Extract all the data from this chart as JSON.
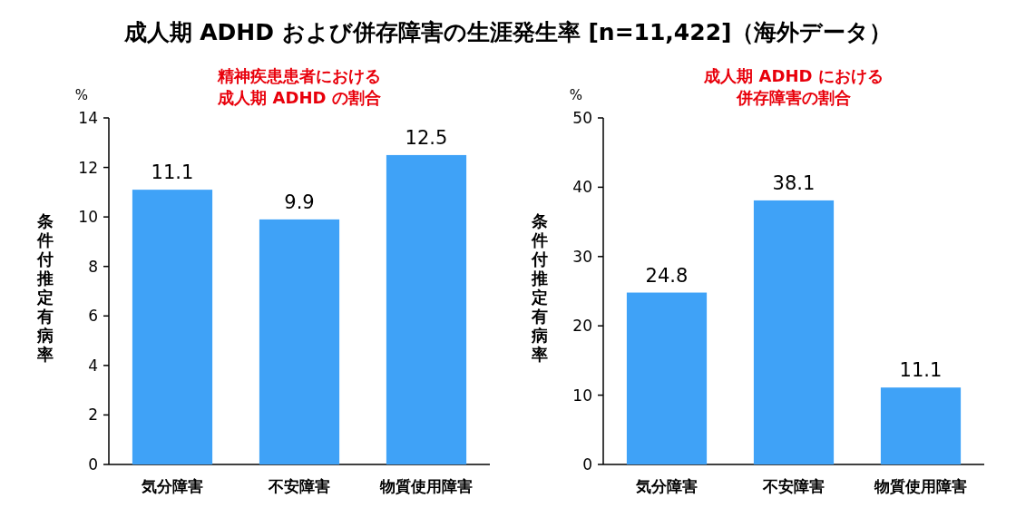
{
  "chart_data": [
    {
      "type": "bar",
      "title": "成人期 ADHD および併存障害の生涯発生率 [n=11,422]（海外データ）",
      "subtitle": "精神疾患患者における成人期 ADHD の割合",
      "ylabel": "条件付推定有病率",
      "annotations": [
        "%"
      ],
      "categories": [
        "気分障害",
        "不安障害",
        "物質使用障害"
      ],
      "values": [
        11.1,
        9.9,
        12.5
      ],
      "color": "#3fa2f7",
      "ylim": [
        0,
        14
      ],
      "yticks": [
        0,
        2,
        4,
        6,
        8,
        10,
        12,
        14
      ],
      "data_labels": true,
      "grid": false
    },
    {
      "type": "bar",
      "subtitle": "成人期 ADHD における併存障害の割合",
      "ylabel": "条件付推定有病率",
      "annotations": [
        "%"
      ],
      "categories": [
        "気分障害",
        "不安障害",
        "物質使用障害"
      ],
      "values": [
        24.8,
        38.1,
        11.1
      ],
      "color": "#3fa2f7",
      "ylim": [
        0,
        50
      ],
      "yticks": [
        0,
        10,
        20,
        30,
        40,
        50
      ],
      "data_labels": true,
      "grid": false
    }
  ]
}
